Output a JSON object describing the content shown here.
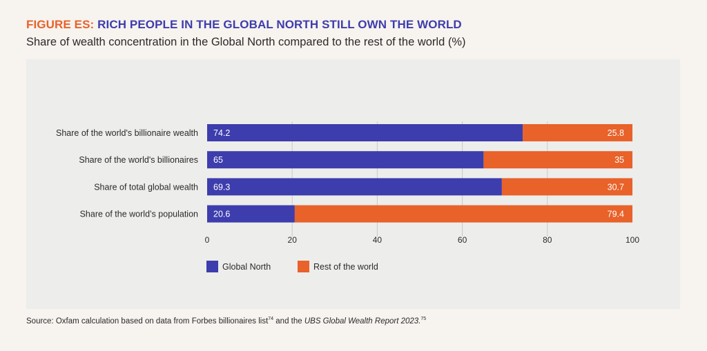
{
  "figure": {
    "label": "FIGURE ES:",
    "title": "RICH PEOPLE IN THE GLOBAL NORTH STILL OWN THE WORLD",
    "subtitle": "Share of wealth concentration in the Global North compared to the rest of the world (%)"
  },
  "source": {
    "prefix": "Source: Oxfam calculation based on data from Forbes billionaires list",
    "ref1": "74",
    "middle": " and the ",
    "report": "UBS Global Wealth Report 2023.",
    "ref2": "75"
  },
  "colors": {
    "global_north": "#3d3dad",
    "rest_of_world": "#e8622a",
    "grid": "#c9c9c9",
    "text": "#2a2a2a",
    "panel": "#ededec"
  },
  "chart_data": {
    "type": "bar",
    "orientation": "horizontal",
    "stacked": true,
    "categories": [
      "Share of the world's billionaire wealth",
      "Share of the world's billionaires",
      "Share of total global wealth",
      "Share of the world’s population"
    ],
    "series": [
      {
        "name": "Global North",
        "values": [
          74.2,
          65,
          69.3,
          20.6
        ]
      },
      {
        "name": "Rest of the world",
        "values": [
          25.8,
          35,
          30.7,
          79.4
        ]
      }
    ],
    "value_labels": [
      [
        "74.2",
        "65",
        "69.3",
        "20.6"
      ],
      [
        "25.8",
        "35",
        "30.7",
        "79.4"
      ]
    ],
    "xlim": [
      0,
      100
    ],
    "xticks": [
      0,
      20,
      40,
      60,
      80,
      100
    ],
    "xtick_labels": [
      "0",
      "20",
      "40",
      "60",
      "80",
      "100"
    ],
    "grid": true,
    "legend_position": "bottom-left"
  }
}
